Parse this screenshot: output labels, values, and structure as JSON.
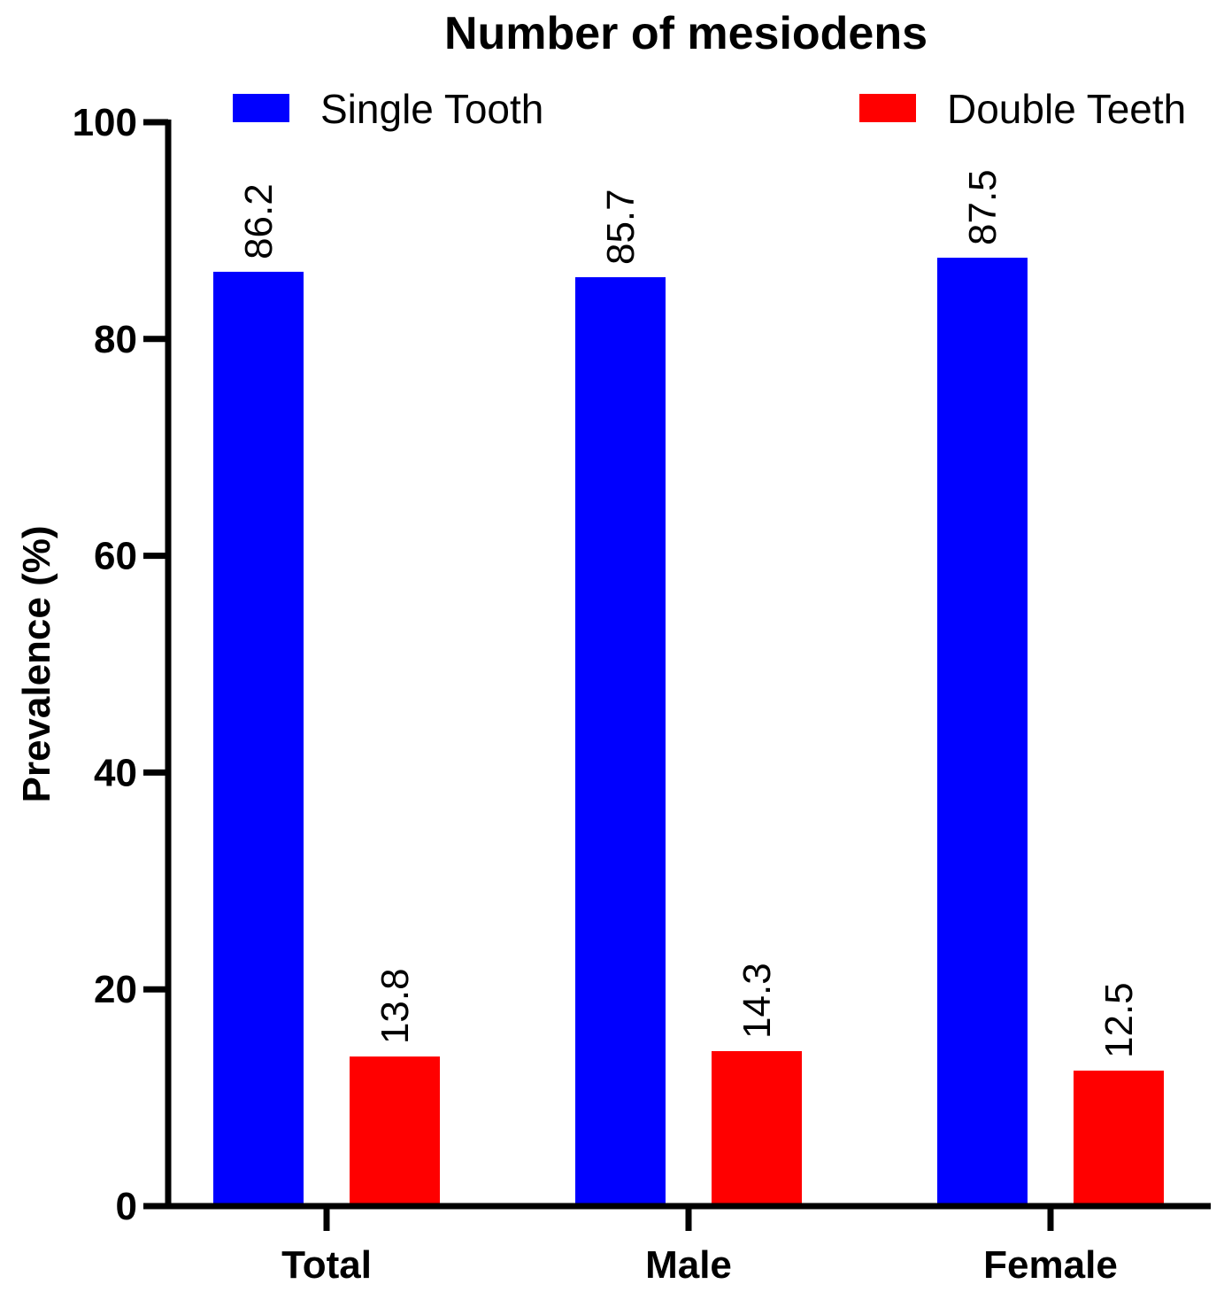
{
  "chart_data": {
    "type": "bar",
    "title": "Number of mesiodens",
    "xlabel": "",
    "ylabel": "Prevalence (%)",
    "ylim": [
      0,
      100
    ],
    "yticks": [
      0,
      20,
      40,
      60,
      80,
      100
    ],
    "categories": [
      "Total",
      "Male",
      "Female"
    ],
    "series": [
      {
        "name": "Single Tooth",
        "color": "#0000ff",
        "values": [
          86.2,
          85.7,
          87.5
        ],
        "labels": [
          "86.2",
          "85.7",
          "87.5"
        ]
      },
      {
        "name": "Double Teeth",
        "color": "#ff0000",
        "values": [
          13.8,
          14.3,
          12.5
        ],
        "labels": [
          "13.8",
          "14.3",
          "12.5"
        ]
      }
    ],
    "legend_position": "top",
    "grid": false
  }
}
